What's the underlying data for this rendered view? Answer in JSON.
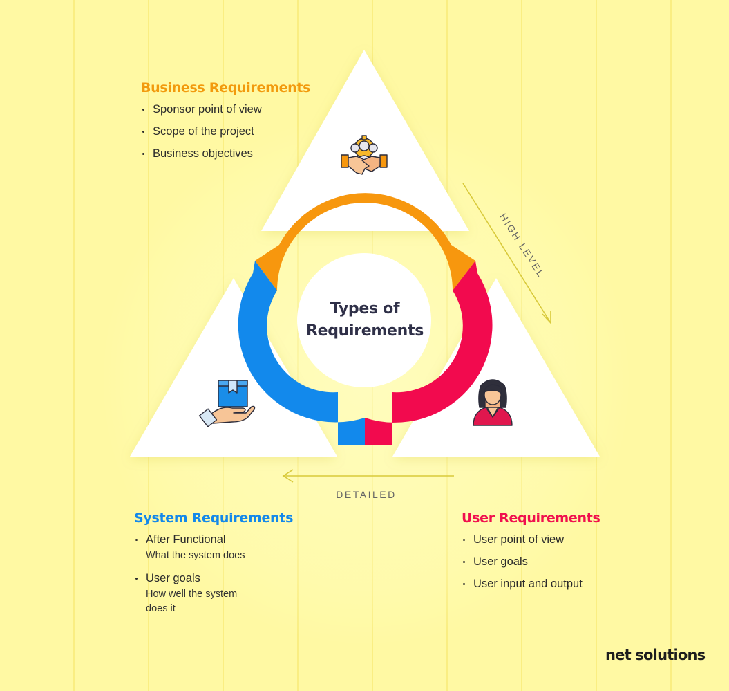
{
  "diagram": {
    "center_title_line1": "Types of",
    "center_title_line2": "Requirements",
    "arrow_high_label": "HIGH LEVEL",
    "arrow_detailed_label": "DETAILED",
    "colors": {
      "business": "#f7970e",
      "system": "#1289ec",
      "user": "#f20a4e"
    }
  },
  "business": {
    "heading": "Business Requirements",
    "items": [
      "Sponsor point of view",
      "Scope of the project",
      "Business objectives"
    ],
    "icon": "handshake-team-icon"
  },
  "system": {
    "heading": "System Requirements",
    "items": [
      {
        "label": "After Functional",
        "detail": "What the system does"
      },
      {
        "label": "User goals",
        "detail_line1": "How well the system",
        "detail_line2": "does it"
      }
    ],
    "icon": "hand-holding-box-icon"
  },
  "user": {
    "heading": "User Requirements",
    "items": [
      "User point of view",
      "User goals",
      "User input and output"
    ],
    "icon": "woman-avatar-icon"
  },
  "brand": {
    "logo_text_part1": "net sol",
    "logo_text_part2": "utions"
  }
}
